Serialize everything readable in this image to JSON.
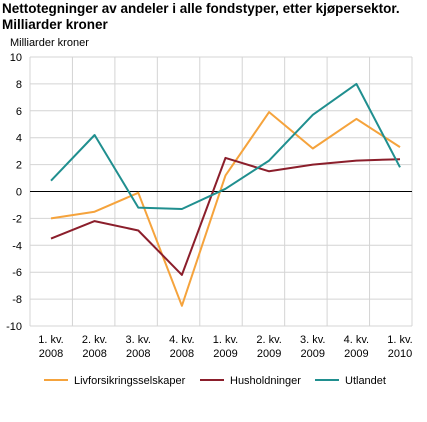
{
  "chart_data": {
    "type": "line",
    "title": "Nettotegninger av andeler i alle fondstyper, etter kjøpersektor. Milliarder kroner",
    "ylabel": "Milliarder kroner",
    "xlabel": "",
    "ylim": [
      -10,
      10
    ],
    "yticks": [
      "10",
      "8",
      "6",
      "4",
      "2",
      "0",
      "-2",
      "-4",
      "-6",
      "-8",
      "-10"
    ],
    "categories": [
      [
        "1. kv.",
        "2008"
      ],
      [
        "2. kv.",
        "2008"
      ],
      [
        "3. kv.",
        "2008"
      ],
      [
        "4. kv.",
        "2008"
      ],
      [
        "1. kv.",
        "2009"
      ],
      [
        "2. kv.",
        "2009"
      ],
      [
        "3. kv.",
        "2009"
      ],
      [
        "4. kv.",
        "2009"
      ],
      [
        "1. kv.",
        "2010"
      ]
    ],
    "grid": true,
    "legend_position": "bottom",
    "series": [
      {
        "name": "Livforsikringsselskaper",
        "color": "#f5a33c",
        "values": [
          -2.0,
          -1.5,
          -0.1,
          -8.5,
          1.2,
          5.9,
          3.2,
          5.4,
          3.3
        ]
      },
      {
        "name": "Husholdninger",
        "color": "#8b1e2b",
        "values": [
          -3.5,
          -2.2,
          -2.9,
          -6.2,
          2.5,
          1.5,
          2.0,
          2.3,
          2.4
        ]
      },
      {
        "name": "Utlandet",
        "color": "#208f8f",
        "values": [
          0.8,
          4.2,
          -1.2,
          -1.3,
          0.2,
          2.3,
          5.7,
          8.0,
          1.8
        ]
      }
    ]
  }
}
